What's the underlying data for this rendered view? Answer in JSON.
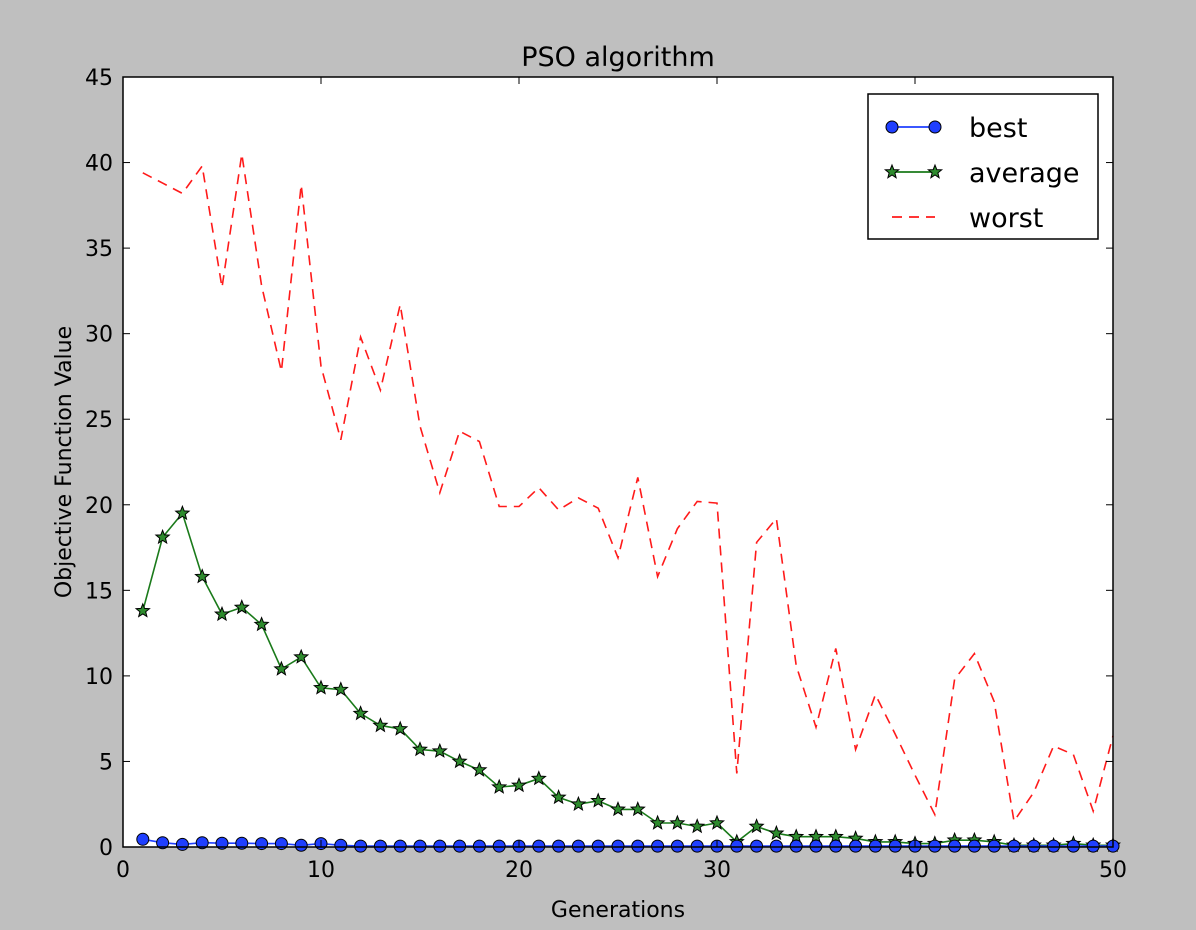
{
  "chart_data": {
    "type": "line",
    "title": "PSO algorithm",
    "xlabel": "Generations",
    "ylabel": "Objective Function Value",
    "xlim": [
      0,
      50
    ],
    "ylim": [
      0,
      45
    ],
    "xticks": [
      0,
      10,
      20,
      30,
      40,
      50
    ],
    "yticks": [
      0,
      5,
      10,
      15,
      20,
      25,
      30,
      35,
      40,
      45
    ],
    "grid": false,
    "legend_position": "upper right",
    "x": [
      1,
      2,
      3,
      4,
      5,
      6,
      7,
      8,
      9,
      10,
      11,
      12,
      13,
      14,
      15,
      16,
      17,
      18,
      19,
      20,
      21,
      22,
      23,
      24,
      25,
      26,
      27,
      28,
      29,
      30,
      31,
      32,
      33,
      34,
      35,
      36,
      37,
      38,
      39,
      40,
      41,
      42,
      43,
      44,
      45,
      46,
      47,
      48,
      49,
      50
    ],
    "series": [
      {
        "name": "best",
        "style": "solid-circle",
        "color": "#1f3fff",
        "values": [
          0.45,
          0.25,
          0.15,
          0.25,
          0.22,
          0.22,
          0.2,
          0.2,
          0.1,
          0.2,
          0.1,
          0.05,
          0.05,
          0.05,
          0.05,
          0.05,
          0.05,
          0.05,
          0.05,
          0.05,
          0.05,
          0.05,
          0.05,
          0.05,
          0.05,
          0.05,
          0.05,
          0.05,
          0.05,
          0.05,
          0.05,
          0.05,
          0.05,
          0.05,
          0.05,
          0.05,
          0.05,
          0.05,
          0.05,
          0.05,
          0.05,
          0.05,
          0.05,
          0.05,
          0.05,
          0.05,
          0.05,
          0.05,
          0.05,
          0.05
        ]
      },
      {
        "name": "average",
        "style": "solid-star",
        "color": "#1a7a1a",
        "marker_fill": "#2e8b2e",
        "values": [
          13.8,
          18.1,
          19.5,
          15.8,
          13.6,
          14.0,
          13.0,
          10.4,
          11.1,
          9.3,
          9.2,
          7.8,
          7.1,
          6.9,
          5.7,
          5.6,
          5.0,
          4.5,
          3.5,
          3.6,
          4.0,
          2.9,
          2.5,
          2.7,
          2.2,
          2.2,
          1.4,
          1.4,
          1.2,
          1.4,
          0.3,
          1.2,
          0.8,
          0.6,
          0.6,
          0.6,
          0.5,
          0.3,
          0.3,
          0.2,
          0.2,
          0.4,
          0.4,
          0.3,
          0.1,
          0.1,
          0.1,
          0.2,
          0.1,
          0.1
        ]
      },
      {
        "name": "worst",
        "style": "dashed",
        "color": "#ff1a1a",
        "values": [
          39.4,
          38.8,
          38.2,
          39.8,
          32.7,
          40.5,
          32.8,
          27.8,
          38.7,
          28.1,
          23.8,
          29.8,
          26.7,
          31.7,
          24.6,
          20.7,
          24.3,
          23.7,
          19.9,
          19.9,
          21.0,
          19.7,
          20.4,
          19.8,
          16.9,
          21.6,
          15.8,
          18.6,
          20.2,
          20.1,
          4.3,
          17.8,
          19.2,
          10.6,
          7.0,
          11.6,
          5.7,
          8.9,
          6.6,
          4.2,
          1.9,
          9.8,
          11.3,
          8.5,
          1.5,
          3.2,
          5.9,
          5.4,
          2.1,
          6.5
        ]
      }
    ]
  }
}
